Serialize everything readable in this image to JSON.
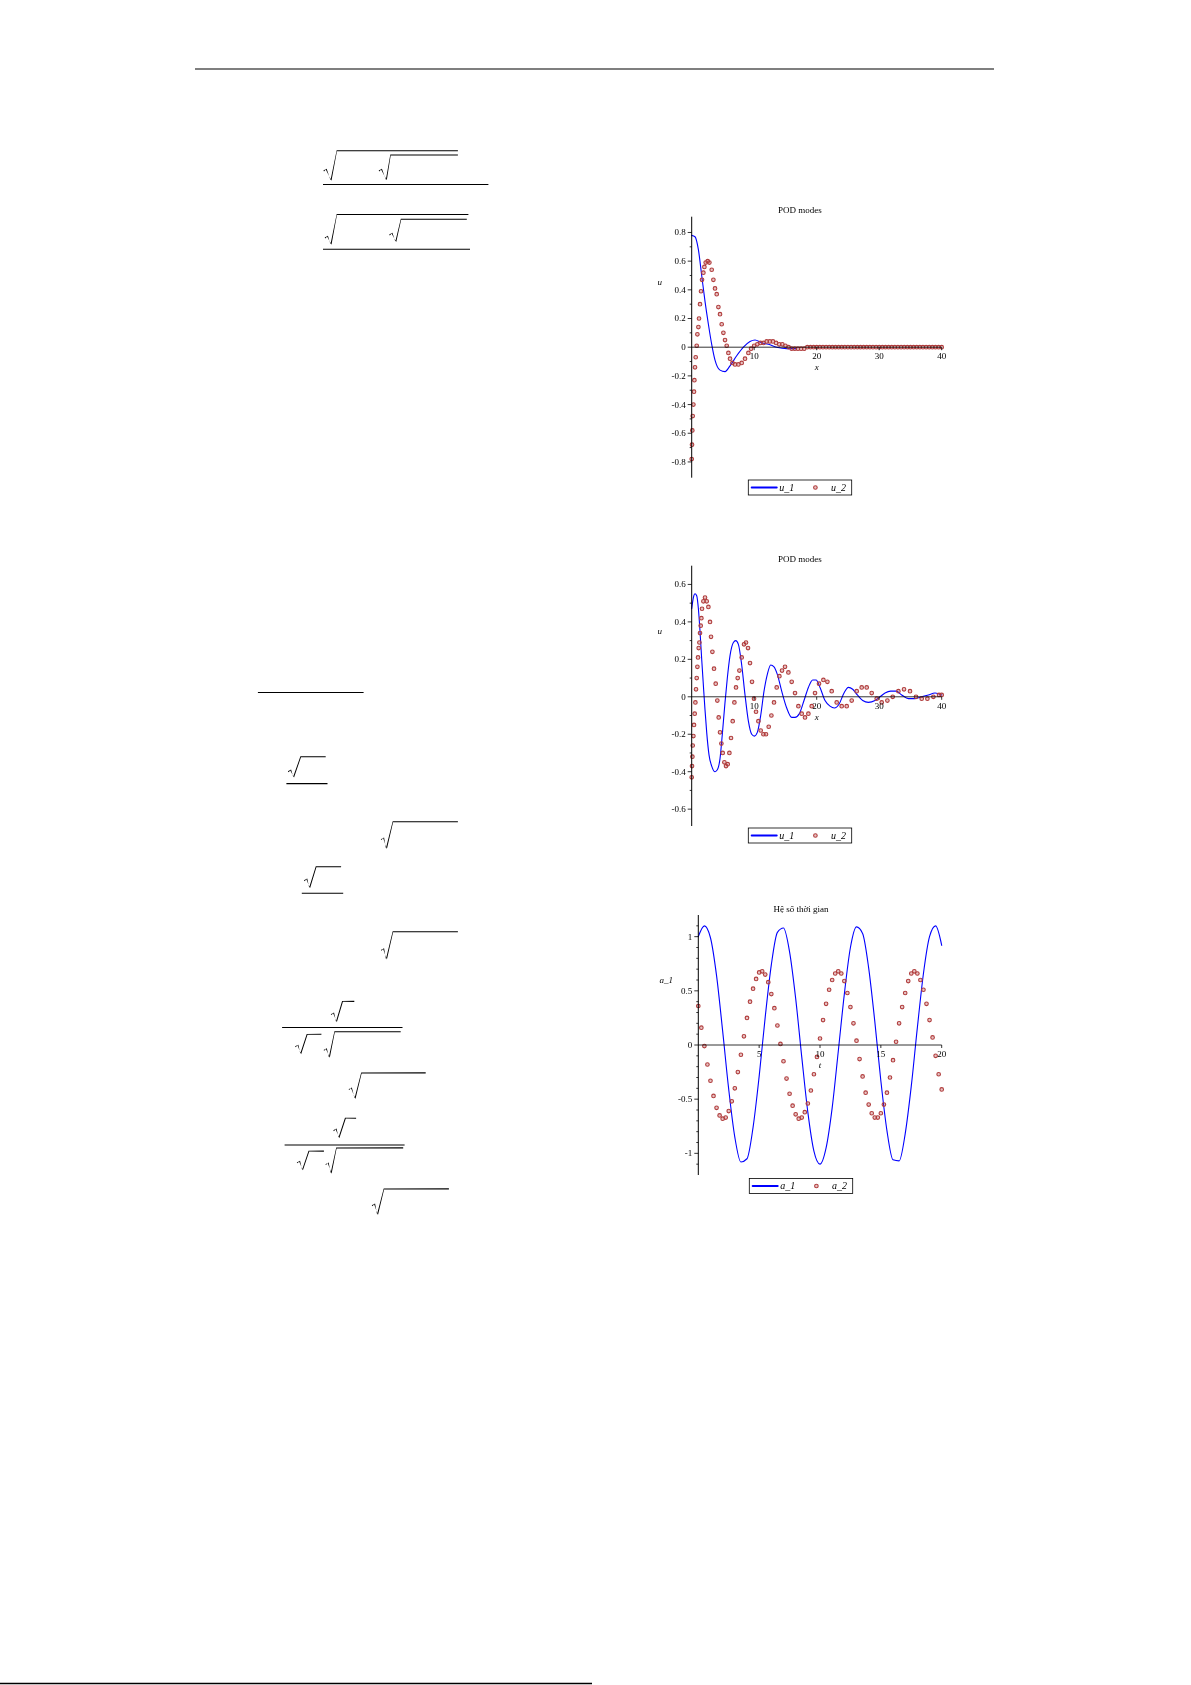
{
  "chart_data": [
    {
      "type": "line",
      "title": "POD modes",
      "xlabel": "x",
      "ylabel": "u",
      "xlim": [
        0,
        40
      ],
      "ylim": [
        -0.91,
        0.91
      ],
      "xticks": [
        10,
        20,
        30,
        40
      ],
      "yticks": [
        -0.8,
        {
          "value": -0.7,
          "label": null
        },
        -0.6,
        {
          "value": -0.5,
          "label": null
        },
        -0.4,
        {
          "value": -0.3,
          "label": null
        },
        -0.2,
        {
          "value": -0.1,
          "label": null
        },
        0,
        {
          "value": 0.1,
          "label": null
        },
        0.2,
        {
          "value": 0.3,
          "label": null
        },
        0.4,
        {
          "value": 0.5,
          "label": null
        },
        0.6,
        {
          "value": 0.7,
          "label": null
        },
        0.8
      ],
      "legend": "bottom",
      "series": [
        {
          "name": "u_1",
          "color": "#0000ff",
          "x": [
            0,
            0.53,
            1.07,
            1.6,
            2.13,
            2.67,
            3.2,
            3.73,
            4.53,
            5.33,
            6.13,
            7.2,
            8.27,
            9.33,
            10.13,
            11.2,
            12.27,
            13.6,
            15.2,
            16.8
          ],
          "values": [
            0.78,
            0.77,
            0.68,
            0.5,
            0.32,
            0.16,
            0.02,
            -0.09,
            -0.16,
            -0.17,
            -0.13,
            -0.06,
            0,
            0.04,
            0.05,
            0.03,
            0.02,
            0,
            -0.01,
            -0.01
          ]
        },
        {
          "name": "u_2",
          "type": "scatter",
          "marker": "circle",
          "color": "#b03c3c",
          "x": [
            0,
            0.05,
            0.1,
            0.16,
            0.27,
            0.37,
            0.43,
            0.53,
            0.64,
            0.8,
            0.91,
            1.07,
            1.17,
            1.33,
            1.49,
            1.65,
            1.87,
            2.03,
            2.24,
            2.56,
            2.83,
            3.2,
            3.47,
            3.73,
            4,
            4.27,
            4.53,
            4.8,
            5.07,
            5.33,
            5.6,
            5.87,
            6.13,
            6.51,
            6.93,
            7.47,
            8,
            8.53,
            9.07,
            9.5,
            10,
            10.5,
            11,
            11.5,
            12,
            12.5,
            13,
            13.5,
            14,
            14.5,
            15,
            15.5,
            16,
            16.5,
            17,
            17.5,
            18,
            18.5,
            19,
            19.5,
            20,
            20.5,
            21,
            21.5,
            22,
            22.5,
            23,
            23.5,
            24,
            24.5,
            25,
            25.5,
            26,
            26.5,
            27,
            27.5,
            28,
            28.5,
            29,
            29.5,
            30,
            30.5,
            31,
            31.5,
            32,
            32.5,
            33,
            33.5,
            34,
            34.5,
            35,
            35.5,
            36,
            36.5,
            37,
            37.5,
            38,
            38.5,
            39,
            39.5,
            40
          ],
          "values": [
            -0.78,
            -0.68,
            -0.58,
            -0.48,
            -0.4,
            -0.31,
            -0.23,
            -0.14,
            -0.07,
            0.01,
            0.09,
            0.14,
            0.2,
            0.3,
            0.39,
            0.47,
            0.52,
            0.56,
            0.59,
            0.6,
            0.59,
            0.54,
            0.47,
            0.41,
            0.37,
            0.28,
            0.23,
            0.16,
            0.1,
            0.05,
            0.01,
            -0.04,
            -0.08,
            -0.11,
            -0.12,
            -0.12,
            -0.11,
            -0.08,
            -0.04,
            -0.01,
            0.01,
            0.02,
            0.03,
            0.03,
            0.04,
            0.04,
            0.04,
            0.03,
            0.02,
            0.02,
            0.01,
            0,
            -0.01,
            -0.01,
            -0.01,
            -0.01,
            -0.01,
            0,
            0,
            0,
            0,
            0,
            0,
            0,
            0,
            0,
            0,
            0,
            0,
            0,
            0,
            0,
            0,
            0,
            0,
            0,
            0,
            0,
            0,
            0,
            0,
            0,
            0,
            0,
            0,
            0,
            0,
            0,
            0,
            0,
            0,
            0,
            0,
            0,
            0,
            0,
            0,
            0,
            0,
            0,
            0
          ]
        }
      ]
    },
    {
      "type": "line",
      "title": "POD modes",
      "xlabel": "x",
      "ylabel": "u",
      "xlim": [
        0,
        40
      ],
      "ylim": [
        -0.69,
        0.7
      ],
      "xticks": [
        10,
        20,
        30,
        40
      ],
      "yticks": [
        -0.6,
        {
          "value": -0.5,
          "label": null
        },
        -0.4,
        {
          "value": -0.3,
          "label": null
        },
        -0.2,
        {
          "value": -0.1,
          "label": null
        },
        0,
        {
          "value": 0.1,
          "label": null
        },
        0.2,
        {
          "value": 0.3,
          "label": null
        },
        0.4,
        {
          "value": 0.5,
          "label": null
        },
        0.6
      ],
      "legend": "bottom",
      "series": [
        {
          "name": "u_1",
          "color": "#0000ff",
          "x": [
            0,
            0.27,
            0.53,
            0.8,
            1.07,
            1.33,
            1.6,
            1.87,
            2.13,
            2.4,
            2.77,
            3.2,
            3.73,
            4.1,
            4.53,
            4.9,
            5.33,
            5.7,
            6.13,
            6.67,
            7.04,
            7.47,
            8,
            8.53,
            9.07,
            9.6,
            10.03,
            10.5,
            11.04,
            11.57,
            12.1,
            12.64,
            13.17,
            13.7,
            14.4,
            15.2,
            16,
            16.53,
            17.23,
            17.97,
            18.67,
            19.36,
            19.9,
            20.53,
            21.33,
            22.13,
            22.83,
            23.57,
            24.37,
            25.07,
            25.76,
            26.5,
            27.36,
            28.27,
            29.33,
            30.13,
            30.93,
            31.84,
            32.7,
            33.6,
            34.67,
            35.73,
            36.8,
            37.87,
            38.93,
            40
          ],
          "values": [
            0.47,
            0.53,
            0.55,
            0.54,
            0.47,
            0.35,
            0.2,
            0.06,
            -0.07,
            -0.19,
            -0.31,
            -0.37,
            -0.4,
            -0.39,
            -0.33,
            -0.2,
            -0.03,
            0.1,
            0.22,
            0.29,
            0.3,
            0.28,
            0.17,
            0.01,
            -0.13,
            -0.2,
            -0.21,
            -0.19,
            -0.1,
            0.03,
            0.12,
            0.17,
            0.16,
            0.12,
            0.03,
            -0.06,
            -0.11,
            -0.11,
            -0.09,
            -0.02,
            0.05,
            0.09,
            0.09,
            0.05,
            -0.02,
            -0.05,
            -0.06,
            -0.04,
            0.02,
            0.05,
            0.04,
            0.01,
            -0.02,
            -0.03,
            -0.02,
            0,
            0.02,
            0.03,
            0.03,
            0.01,
            -0.01,
            -0.01,
            0,
            0.01,
            0.02,
            0.01
          ]
        },
        {
          "name": "u_2",
          "type": "scatter",
          "marker": "circle",
          "color": "#b03c3c",
          "x": [
            0,
            0.05,
            0.11,
            0.16,
            0.27,
            0.37,
            0.48,
            0.59,
            0.69,
            0.8,
            0.91,
            1.01,
            1.12,
            1.23,
            1.33,
            1.44,
            1.55,
            1.65,
            1.87,
            2.13,
            2.4,
            2.67,
            2.93,
            3.09,
            3.31,
            3.57,
            3.84,
            4.1,
            4.32,
            4.53,
            4.75,
            4.96,
            5.23,
            5.49,
            5.76,
            6.03,
            6.29,
            6.56,
            6.83,
            7.09,
            7.36,
            7.63,
            8,
            8.37,
            8.69,
            9.01,
            9.33,
            9.65,
            9.97,
            10.29,
            10.67,
            11.04,
            11.47,
            11.89,
            12.32,
            12.75,
            13.17,
            13.6,
            14.03,
            14.45,
            14.93,
            15.47,
            16,
            16.53,
            17.07,
            17.6,
            18.13,
            18.67,
            19.2,
            19.73,
            20.37,
            21.07,
            21.71,
            22.4,
            23.2,
            24,
            24.8,
            25.6,
            26.4,
            27.2,
            28,
            28.8,
            29.6,
            30.4,
            31.31,
            32.16,
            33.07,
            33.97,
            34.93,
            35.89,
            36.8,
            37.71,
            38.67,
            39.57,
            40
          ],
          "values": [
            -0.43,
            -0.37,
            -0.32,
            -0.26,
            -0.21,
            -0.15,
            -0.09,
            -0.03,
            0.04,
            0.1,
            0.16,
            0.21,
            0.26,
            0.29,
            0.34,
            0.38,
            0.42,
            0.47,
            0.51,
            0.53,
            0.51,
            0.48,
            0.4,
            0.32,
            0.24,
            0.15,
            0.07,
            -0.02,
            -0.11,
            -0.19,
            -0.25,
            -0.3,
            -0.35,
            -0.37,
            -0.36,
            -0.3,
            -0.22,
            -0.13,
            -0.03,
            0.05,
            0.1,
            0.14,
            0.21,
            0.28,
            0.29,
            0.26,
            0.18,
            0.08,
            -0.01,
            -0.08,
            -0.13,
            -0.18,
            -0.2,
            -0.2,
            -0.16,
            -0.1,
            -0.03,
            0.05,
            0.11,
            0.14,
            0.16,
            0.13,
            0.08,
            0.02,
            -0.05,
            -0.09,
            -0.11,
            -0.09,
            -0.05,
            0.02,
            0.07,
            0.09,
            0.08,
            0.03,
            -0.03,
            -0.05,
            -0.05,
            -0.02,
            0.03,
            0.05,
            0.05,
            0.02,
            -0.01,
            -0.03,
            -0.02,
            0,
            0.03,
            0.04,
            0.03,
            0,
            -0.01,
            -0.01,
            0,
            0.01,
            0.01
          ]
        }
      ]
    },
    {
      "type": "line",
      "title": "Hệ số thời gian",
      "xlabel": "t",
      "ylabel": "a_1",
      "xlim": [
        0,
        20
      ],
      "ylim": [
        -1.2,
        1.2
      ],
      "xticks": [
        5,
        10,
        15,
        20
      ],
      "yticks": [
        {
          "value": -1.1,
          "label": null
        },
        -1,
        {
          "value": -0.9,
          "label": null
        },
        {
          "value": -0.8,
          "label": null
        },
        {
          "value": -0.7,
          "label": null
        },
        {
          "value": -0.6,
          "label": null
        },
        -0.5,
        {
          "value": -0.4,
          "label": null
        },
        {
          "value": -0.3,
          "label": null
        },
        {
          "value": -0.2,
          "label": null
        },
        {
          "value": -0.1,
          "label": null
        },
        0,
        {
          "value": 0.1,
          "label": null
        },
        {
          "value": 0.2,
          "label": null
        },
        {
          "value": 0.3,
          "label": null
        },
        {
          "value": 0.4,
          "label": null
        },
        0.5,
        {
          "value": 0.6,
          "label": null
        },
        {
          "value": 0.7,
          "label": null
        },
        {
          "value": 0.8,
          "label": null
        },
        {
          "value": 0.9,
          "label": null
        },
        1,
        {
          "value": 1.1,
          "label": null
        }
      ],
      "legend": "bottom",
      "series": [
        {
          "name": "a_1",
          "color": "#0000ff",
          "x": [
            0,
            0.5,
            1,
            1.5,
            2,
            2.5,
            3,
            3.5,
            4,
            4.5,
            5,
            5.5,
            6,
            6.5,
            7,
            7.5,
            8,
            8.5,
            9,
            9.5,
            10,
            10.5,
            11,
            11.5,
            12,
            12.5,
            13,
            13.5,
            14,
            14.5,
            15,
            15.5,
            16,
            16.5,
            17,
            17.5,
            18,
            18.5,
            19,
            19.5,
            20
          ],
          "values": [
            1,
            1.1,
            0.99,
            0.64,
            0.13,
            -0.41,
            -0.85,
            -1.08,
            -1.05,
            -0.76,
            -0.29,
            0.26,
            0.74,
            1.04,
            1.08,
            0.86,
            0.43,
            -0.11,
            -0.62,
            -0.98,
            -1.1,
            -0.95,
            -0.58,
            -0.06,
            0.47,
            0.9,
            1.09,
            1.03,
            0.71,
            0.22,
            -0.33,
            -0.79,
            -1.06,
            -1.07,
            -0.82,
            -0.38,
            0.16,
            0.66,
            1,
            1.1,
            0.92
          ]
        },
        {
          "name": "a_2",
          "type": "scatter",
          "marker": "circle",
          "color": "#b03c3c",
          "x": [
            0,
            0.25,
            0.5,
            0.75,
            1,
            1.25,
            1.5,
            1.75,
            2,
            2.25,
            2.5,
            2.75,
            3,
            3.25,
            3.5,
            3.75,
            4,
            4.25,
            4.5,
            4.75,
            5,
            5.25,
            5.5,
            5.75,
            6,
            6.25,
            6.5,
            6.75,
            7,
            7.25,
            7.5,
            7.75,
            8,
            8.25,
            8.5,
            8.75,
            9,
            9.25,
            9.5,
            9.75,
            10,
            10.25,
            10.5,
            10.75,
            11,
            11.25,
            11.5,
            11.75,
            12,
            12.25,
            12.5,
            12.75,
            13,
            13.25,
            13.5,
            13.75,
            14,
            14.25,
            14.5,
            14.75,
            15,
            15.25,
            15.5,
            15.75,
            16,
            16.25,
            16.5,
            16.75,
            17,
            17.25,
            17.5,
            17.75,
            18,
            18.25,
            18.5,
            18.75,
            19,
            19.25,
            19.5,
            19.75,
            20
          ],
          "values": [
            0.36,
            0.16,
            -0.01,
            -0.18,
            -0.33,
            -0.47,
            -0.58,
            -0.65,
            -0.68,
            -0.67,
            -0.61,
            -0.52,
            -0.4,
            -0.25,
            -0.09,
            0.08,
            0.25,
            0.4,
            0.52,
            0.61,
            0.67,
            0.68,
            0.65,
            0.58,
            0.47,
            0.34,
            0.18,
            0.01,
            -0.15,
            -0.31,
            -0.45,
            -0.56,
            -0.64,
            -0.68,
            -0.67,
            -0.62,
            -0.54,
            -0.42,
            -0.27,
            -0.11,
            0.06,
            0.23,
            0.38,
            0.51,
            0.6,
            0.66,
            0.68,
            0.66,
            0.59,
            0.48,
            0.35,
            0.2,
            0.04,
            -0.13,
            -0.29,
            -0.44,
            -0.55,
            -0.63,
            -0.67,
            -0.67,
            -0.63,
            -0.55,
            -0.44,
            -0.3,
            -0.14,
            0.03,
            0.2,
            0.35,
            0.48,
            0.59,
            0.66,
            0.68,
            0.66,
            0.6,
            0.51,
            0.38,
            0.23,
            0.07,
            -0.1,
            -0.27,
            -0.41
          ]
        }
      ]
    }
  ]
}
